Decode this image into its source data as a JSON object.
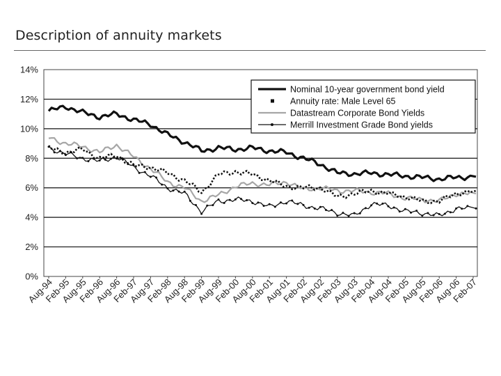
{
  "page": {
    "title": "Description of annuity markets"
  },
  "chart_data": {
    "type": "line",
    "title": "",
    "xlabel": "",
    "ylabel": "",
    "ylim": [
      0,
      14
    ],
    "y_ticks": [
      "0%",
      "2%",
      "4%",
      "6%",
      "8%",
      "10%",
      "12%",
      "14%"
    ],
    "x_ticks": [
      "Aug-94",
      "Feb-95",
      "Aug-95",
      "Feb-96",
      "Aug-96",
      "Feb-97",
      "Aug-97",
      "Feb-98",
      "Aug-98",
      "Feb-99",
      "Aug-99",
      "Feb-00",
      "Aug-00",
      "Feb-01",
      "Aug-01",
      "Feb-02",
      "Aug-02",
      "Feb-03",
      "Aug-03",
      "Feb-04",
      "Aug-04",
      "Feb-05",
      "Aug-05",
      "Feb-06",
      "Aug-06",
      "Feb-07"
    ],
    "legend_position": "top-right",
    "series": [
      {
        "name": "Nominal 10-year government bond yield",
        "style": "thick",
        "color": "#111111",
        "values": [
          11.2,
          11.5,
          11.1,
          10.8,
          11.0,
          10.6,
          10.3,
          9.6,
          9.1,
          8.5,
          8.7,
          8.6,
          8.7,
          8.5,
          8.4,
          8.0,
          7.6,
          7.0,
          6.95,
          7.0,
          6.9,
          6.8,
          6.7,
          6.6,
          6.7,
          6.75
        ]
      },
      {
        "name": "Annuity rate: Male Level 65",
        "style": "dotted-square",
        "color": "#111111",
        "values": [
          8.7,
          8.4,
          8.6,
          8.0,
          8.2,
          7.5,
          7.4,
          7.0,
          6.5,
          5.7,
          6.9,
          7.1,
          6.9,
          6.5,
          6.1,
          6.0,
          6.0,
          5.4,
          5.6,
          5.8,
          5.6,
          5.4,
          5.1,
          5.1,
          5.6,
          5.8
        ]
      },
      {
        "name": "Datastream Corporate Bond Yields",
        "style": "gray",
        "color": "#a6a6a6",
        "values": [
          9.4,
          9.0,
          8.8,
          8.4,
          8.9,
          8.1,
          7.3,
          6.4,
          6.0,
          5.1,
          5.5,
          6.1,
          6.3,
          6.2,
          6.4,
          5.9,
          6.0,
          5.8,
          5.8,
          5.7,
          5.6,
          5.3,
          5.2,
          5.1,
          5.6,
          5.6
        ]
      },
      {
        "name": "Merrill Investment Grade Bond yields",
        "style": "thin-dotted",
        "color": "#111111",
        "values": [
          8.7,
          8.3,
          8.0,
          7.8,
          8.1,
          7.4,
          6.8,
          6.0,
          5.6,
          4.4,
          5.1,
          5.2,
          5.1,
          4.7,
          5.1,
          4.8,
          4.6,
          4.3,
          4.1,
          4.9,
          4.8,
          4.4,
          4.3,
          4.1,
          4.6,
          4.6
        ]
      }
    ]
  }
}
